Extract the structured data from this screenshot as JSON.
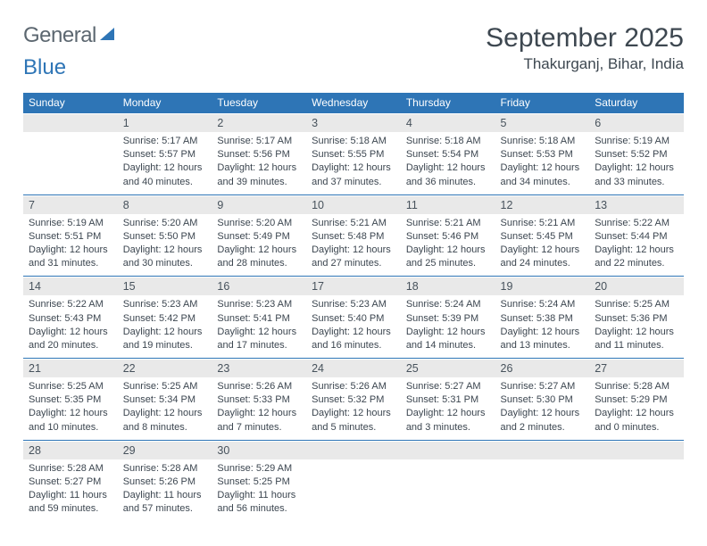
{
  "logo": {
    "text1": "General",
    "text2": "Blue"
  },
  "title": "September 2025",
  "location": "Thakurganj, Bihar, India",
  "dows": [
    "Sunday",
    "Monday",
    "Tuesday",
    "Wednesday",
    "Thursday",
    "Friday",
    "Saturday"
  ],
  "weeks": [
    {
      "nums": [
        "",
        "1",
        "2",
        "3",
        "4",
        "5",
        "6"
      ],
      "cells": [
        [],
        [
          "Sunrise: 5:17 AM",
          "Sunset: 5:57 PM",
          "Daylight: 12 hours",
          "and 40 minutes."
        ],
        [
          "Sunrise: 5:17 AM",
          "Sunset: 5:56 PM",
          "Daylight: 12 hours",
          "and 39 minutes."
        ],
        [
          "Sunrise: 5:18 AM",
          "Sunset: 5:55 PM",
          "Daylight: 12 hours",
          "and 37 minutes."
        ],
        [
          "Sunrise: 5:18 AM",
          "Sunset: 5:54 PM",
          "Daylight: 12 hours",
          "and 36 minutes."
        ],
        [
          "Sunrise: 5:18 AM",
          "Sunset: 5:53 PM",
          "Daylight: 12 hours",
          "and 34 minutes."
        ],
        [
          "Sunrise: 5:19 AM",
          "Sunset: 5:52 PM",
          "Daylight: 12 hours",
          "and 33 minutes."
        ]
      ]
    },
    {
      "nums": [
        "7",
        "8",
        "9",
        "10",
        "11",
        "12",
        "13"
      ],
      "cells": [
        [
          "Sunrise: 5:19 AM",
          "Sunset: 5:51 PM",
          "Daylight: 12 hours",
          "and 31 minutes."
        ],
        [
          "Sunrise: 5:20 AM",
          "Sunset: 5:50 PM",
          "Daylight: 12 hours",
          "and 30 minutes."
        ],
        [
          "Sunrise: 5:20 AM",
          "Sunset: 5:49 PM",
          "Daylight: 12 hours",
          "and 28 minutes."
        ],
        [
          "Sunrise: 5:21 AM",
          "Sunset: 5:48 PM",
          "Daylight: 12 hours",
          "and 27 minutes."
        ],
        [
          "Sunrise: 5:21 AM",
          "Sunset: 5:46 PM",
          "Daylight: 12 hours",
          "and 25 minutes."
        ],
        [
          "Sunrise: 5:21 AM",
          "Sunset: 5:45 PM",
          "Daylight: 12 hours",
          "and 24 minutes."
        ],
        [
          "Sunrise: 5:22 AM",
          "Sunset: 5:44 PM",
          "Daylight: 12 hours",
          "and 22 minutes."
        ]
      ]
    },
    {
      "nums": [
        "14",
        "15",
        "16",
        "17",
        "18",
        "19",
        "20"
      ],
      "cells": [
        [
          "Sunrise: 5:22 AM",
          "Sunset: 5:43 PM",
          "Daylight: 12 hours",
          "and 20 minutes."
        ],
        [
          "Sunrise: 5:23 AM",
          "Sunset: 5:42 PM",
          "Daylight: 12 hours",
          "and 19 minutes."
        ],
        [
          "Sunrise: 5:23 AM",
          "Sunset: 5:41 PM",
          "Daylight: 12 hours",
          "and 17 minutes."
        ],
        [
          "Sunrise: 5:23 AM",
          "Sunset: 5:40 PM",
          "Daylight: 12 hours",
          "and 16 minutes."
        ],
        [
          "Sunrise: 5:24 AM",
          "Sunset: 5:39 PM",
          "Daylight: 12 hours",
          "and 14 minutes."
        ],
        [
          "Sunrise: 5:24 AM",
          "Sunset: 5:38 PM",
          "Daylight: 12 hours",
          "and 13 minutes."
        ],
        [
          "Sunrise: 5:25 AM",
          "Sunset: 5:36 PM",
          "Daylight: 12 hours",
          "and 11 minutes."
        ]
      ]
    },
    {
      "nums": [
        "21",
        "22",
        "23",
        "24",
        "25",
        "26",
        "27"
      ],
      "cells": [
        [
          "Sunrise: 5:25 AM",
          "Sunset: 5:35 PM",
          "Daylight: 12 hours",
          "and 10 minutes."
        ],
        [
          "Sunrise: 5:25 AM",
          "Sunset: 5:34 PM",
          "Daylight: 12 hours",
          "and 8 minutes."
        ],
        [
          "Sunrise: 5:26 AM",
          "Sunset: 5:33 PM",
          "Daylight: 12 hours",
          "and 7 minutes."
        ],
        [
          "Sunrise: 5:26 AM",
          "Sunset: 5:32 PM",
          "Daylight: 12 hours",
          "and 5 minutes."
        ],
        [
          "Sunrise: 5:27 AM",
          "Sunset: 5:31 PM",
          "Daylight: 12 hours",
          "and 3 minutes."
        ],
        [
          "Sunrise: 5:27 AM",
          "Sunset: 5:30 PM",
          "Daylight: 12 hours",
          "and 2 minutes."
        ],
        [
          "Sunrise: 5:28 AM",
          "Sunset: 5:29 PM",
          "Daylight: 12 hours",
          "and 0 minutes."
        ]
      ]
    },
    {
      "nums": [
        "28",
        "29",
        "30",
        "",
        "",
        "",
        ""
      ],
      "cells": [
        [
          "Sunrise: 5:28 AM",
          "Sunset: 5:27 PM",
          "Daylight: 11 hours",
          "and 59 minutes."
        ],
        [
          "Sunrise: 5:28 AM",
          "Sunset: 5:26 PM",
          "Daylight: 11 hours",
          "and 57 minutes."
        ],
        [
          "Sunrise: 5:29 AM",
          "Sunset: 5:25 PM",
          "Daylight: 11 hours",
          "and 56 minutes."
        ],
        [],
        [],
        [],
        []
      ]
    }
  ]
}
